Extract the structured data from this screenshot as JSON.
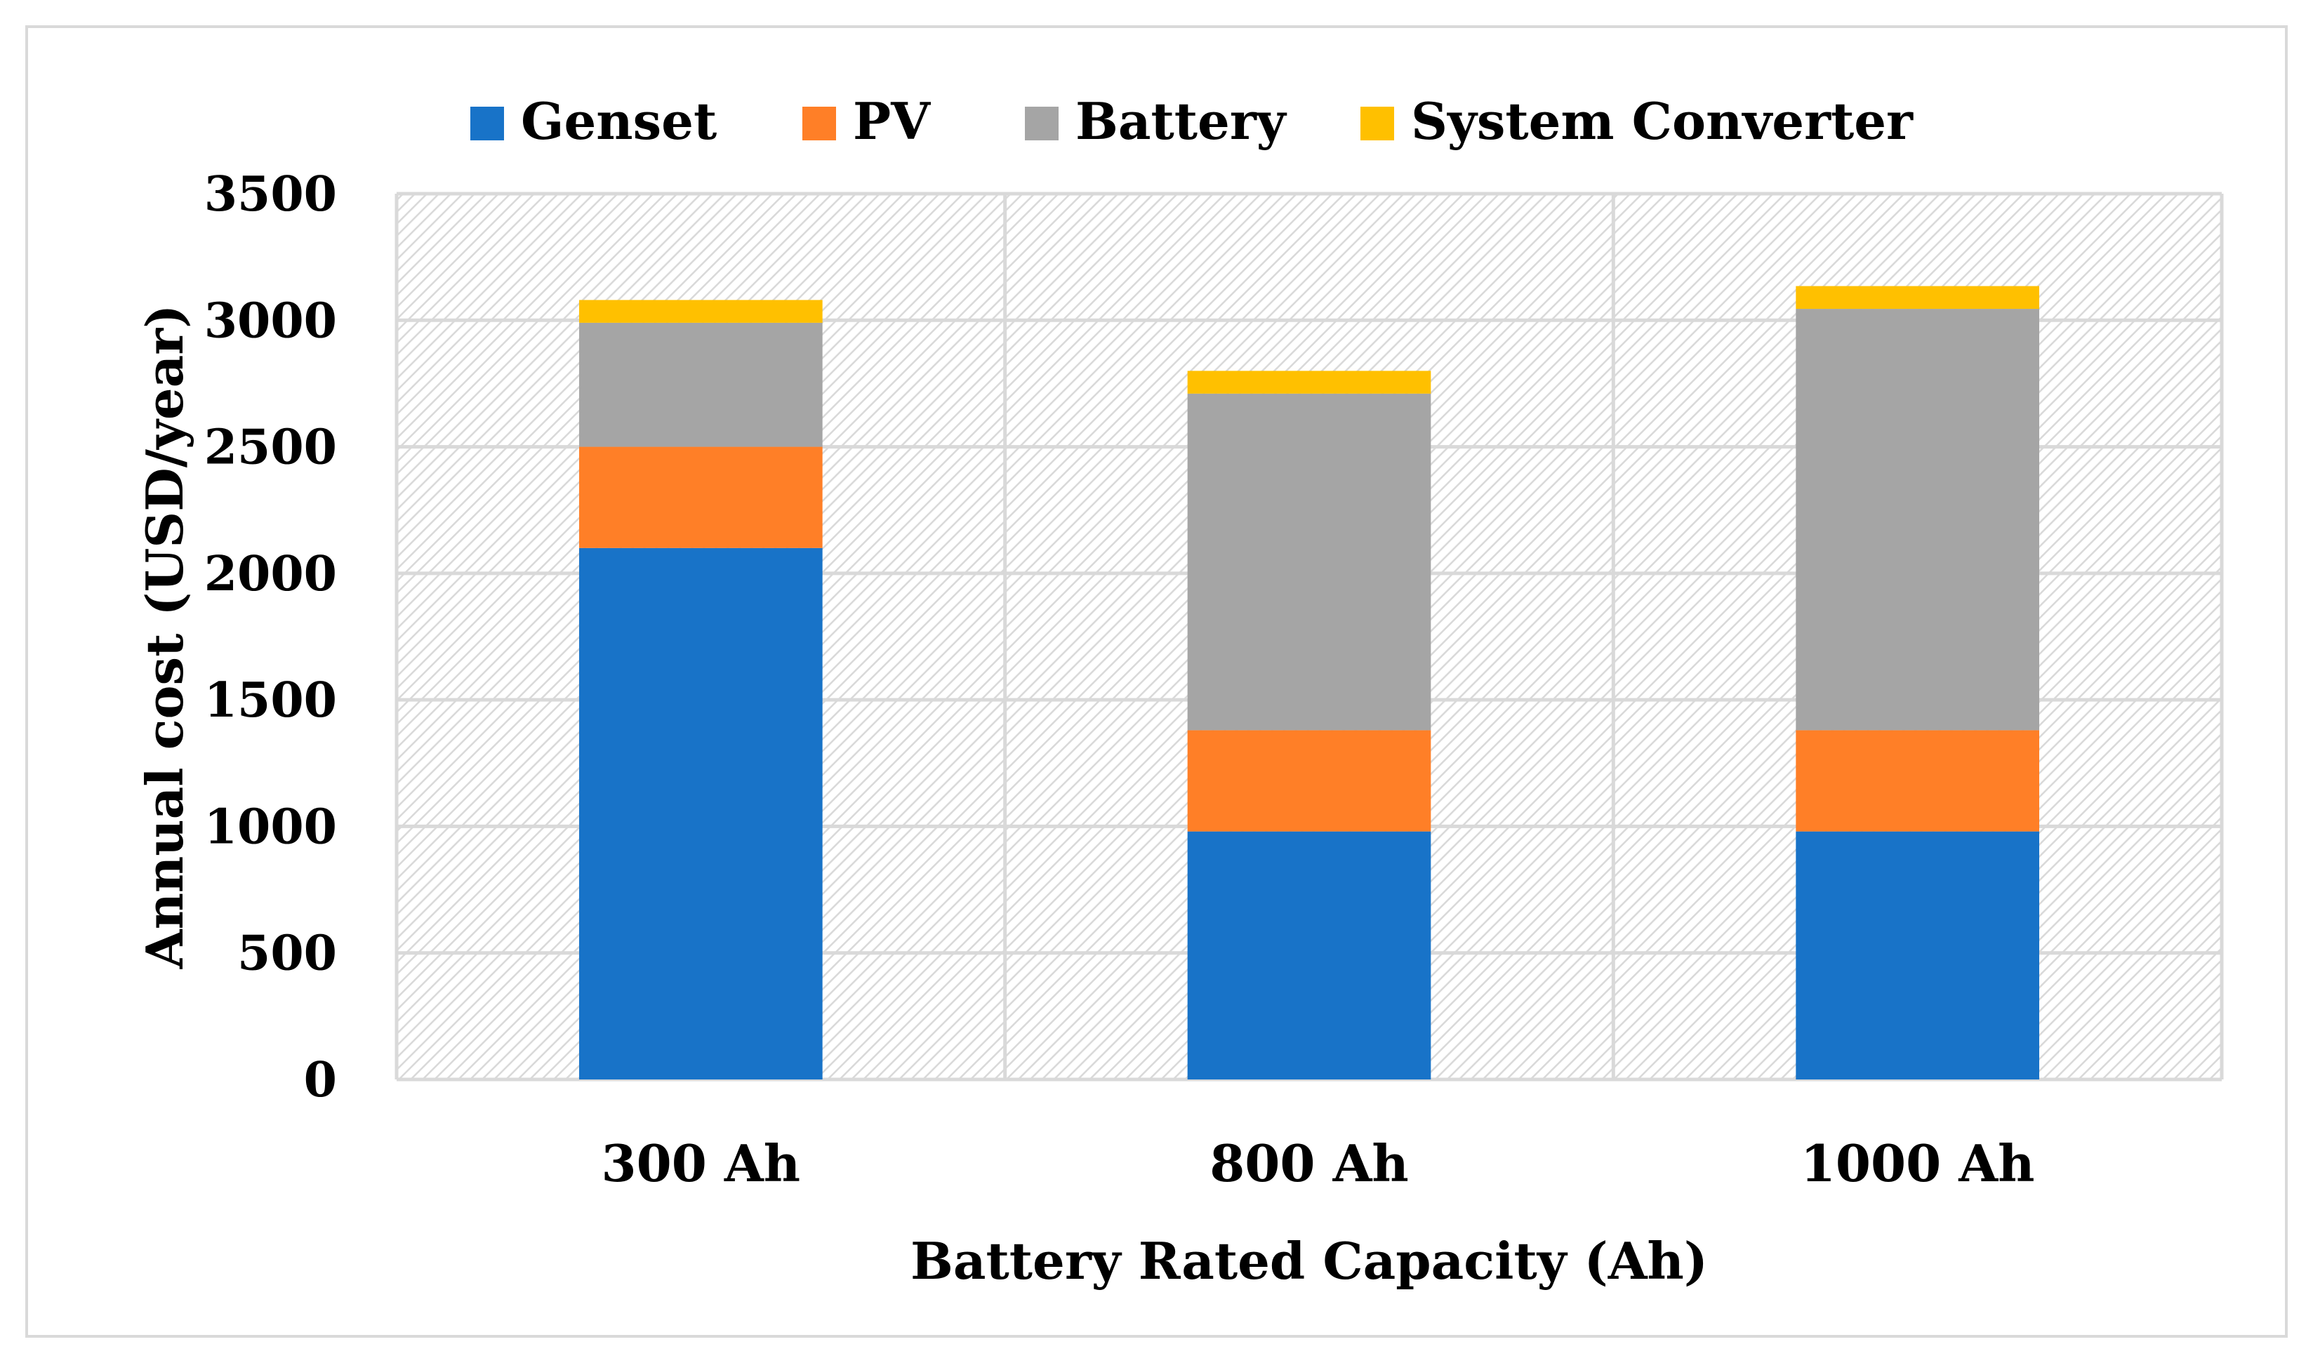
{
  "chart_data": {
    "type": "bar",
    "stacked": true,
    "title": "",
    "xlabel": "Battery Rated Capacity (Ah)",
    "ylabel": "Annual cost (USD/year)",
    "categories": [
      "300 Ah",
      "800 Ah",
      "1000 Ah"
    ],
    "series": [
      {
        "name": "Genset",
        "color": "#1873C8",
        "values": [
          2100,
          980,
          980
        ]
      },
      {
        "name": "PV",
        "color": "#FF7F27",
        "values": [
          400,
          400,
          400
        ]
      },
      {
        "name": "Battery",
        "color": "#A5A5A5",
        "values": [
          490,
          1330,
          1665
        ]
      },
      {
        "name": "System Converter",
        "color": "#FFC000",
        "values": [
          90,
          90,
          90
        ]
      }
    ],
    "ylim": [
      0,
      3500
    ],
    "yticks": [
      0,
      500,
      1000,
      1500,
      2000,
      2500,
      3000,
      3500
    ],
    "grid": true,
    "legend_position": "top"
  }
}
